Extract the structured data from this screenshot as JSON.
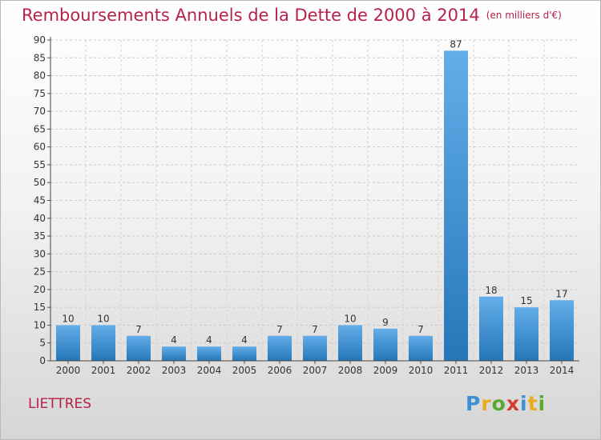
{
  "title": "Remboursements Annuels de la Dette de 2000 à 2014",
  "unit": "(en milliers d'€)",
  "commune": "LIETTRES",
  "logo": {
    "letters": [
      "P",
      "r",
      "o",
      "x",
      "i",
      "t",
      "i"
    ],
    "colors": [
      "#3f8fd6",
      "#e8a91a",
      "#5aa832",
      "#d63a2e",
      "#3f8fd6",
      "#e8a91a",
      "#5aa832"
    ]
  },
  "colors": {
    "bar_light": "#63aeea",
    "bar_dark": "#2676b7",
    "title": "#b5224a"
  },
  "chart_data": {
    "type": "bar",
    "title": "Remboursements Annuels de la Dette de 2000 à 2014",
    "categories": [
      "2000",
      "2001",
      "2002",
      "2003",
      "2004",
      "2005",
      "2006",
      "2007",
      "2008",
      "2009",
      "2010",
      "2011",
      "2012",
      "2013",
      "2014"
    ],
    "values": [
      10,
      10,
      7,
      4,
      4,
      4,
      7,
      7,
      10,
      9,
      7,
      87,
      18,
      15,
      17
    ],
    "ylim": [
      0,
      90
    ],
    "yticks": [
      0,
      5,
      10,
      15,
      20,
      25,
      30,
      35,
      40,
      45,
      50,
      55,
      60,
      65,
      70,
      75,
      80,
      85,
      90
    ],
    "grid": true,
    "data_labels": true
  }
}
